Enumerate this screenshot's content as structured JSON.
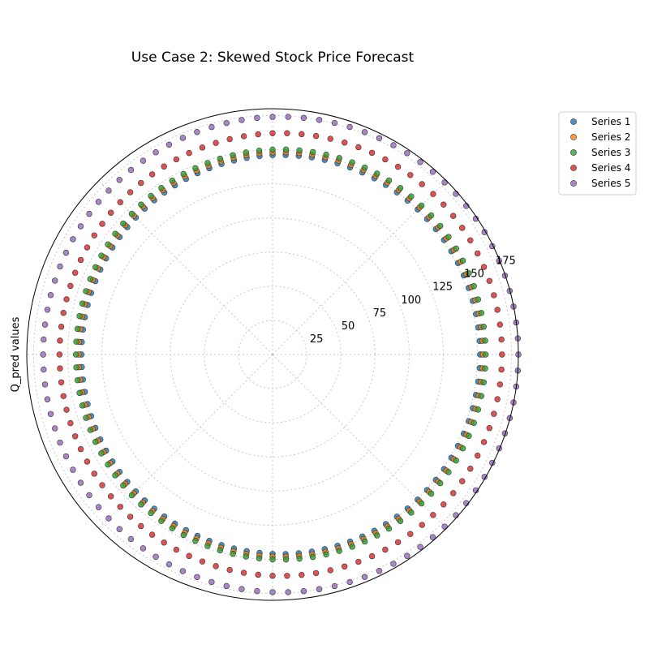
{
  "chart_data": {
    "type": "scatter",
    "projection": "polar",
    "title": "Use Case 2: Skewed Stock Price Forecast",
    "ylabel": "Q_pred values",
    "r_ticks": [
      25,
      50,
      75,
      100,
      125,
      150,
      175
    ],
    "r_tick_labels": [
      "25",
      "50",
      "75",
      "100",
      "125",
      "150",
      "175"
    ],
    "rlim": [
      0,
      180
    ],
    "grid": true,
    "legend_position": "top-right outside",
    "points_per_series": 96,
    "series": [
      {
        "name": "Series 1",
        "color": "#1f77b4",
        "r_mean": 146,
        "r_amplitude": 6
      },
      {
        "name": "Series 2",
        "color": "#ff7f0e",
        "r_mean": 148,
        "r_amplitude": 6
      },
      {
        "name": "Series 3",
        "color": "#2ca02c",
        "r_mean": 150,
        "r_amplitude": 6
      },
      {
        "name": "Series 4",
        "color": "#d62728",
        "r_mean": 162,
        "r_amplitude": 6
      },
      {
        "name": "Series 5",
        "color": "#9467bd",
        "r_mean": 174,
        "r_amplitude": 6
      }
    ]
  }
}
